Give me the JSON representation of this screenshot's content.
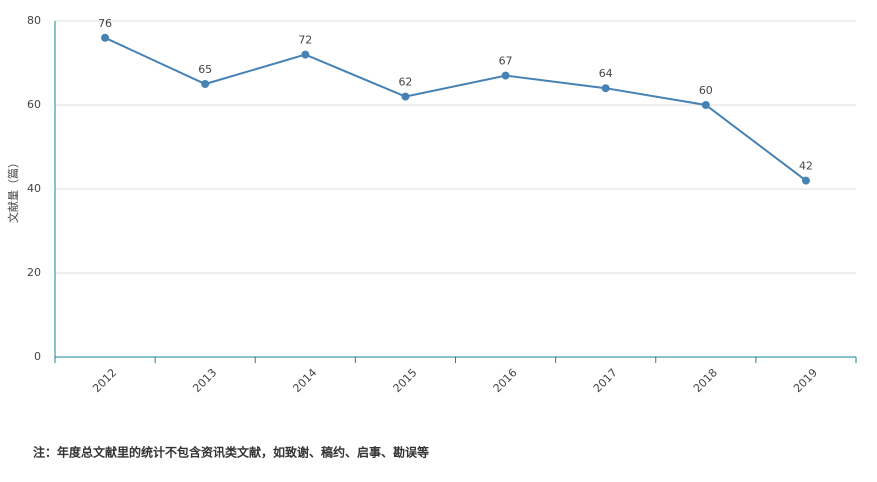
{
  "chart_data": {
    "type": "line",
    "y_label": "文献量（篇）",
    "categories": [
      "2012",
      "2013",
      "2014",
      "2015",
      "2016",
      "2017",
      "2018",
      "2019"
    ],
    "values": [
      76,
      65,
      72,
      62,
      67,
      64,
      60,
      42
    ],
    "color": "#4682b4",
    "ylim": [
      0,
      80
    ],
    "yticks": [
      0,
      20,
      40,
      60,
      80
    ],
    "grid": true,
    "note": "注：年度总文献里的统计不包含资讯类文献，如致谢、稿约、启事、勘误等"
  }
}
